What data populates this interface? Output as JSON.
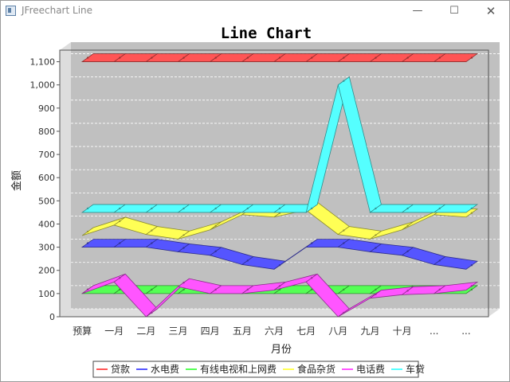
{
  "window": {
    "title": "JFreechart Line",
    "minimize_glyph": "—",
    "maximize_glyph": "☐",
    "close_glyph": "✕"
  },
  "colors": {
    "plot_bg": "#c0c0c0",
    "plot_wall": "#dddddd",
    "grid": "#ffffff"
  },
  "chart_data": {
    "type": "line",
    "render": "3d",
    "title": "Line Chart",
    "xlabel": "月份",
    "ylabel": "金额",
    "categories": [
      "预算",
      "一月",
      "二月",
      "三月",
      "四月",
      "五月",
      "六月",
      "七月",
      "八月",
      "九月",
      "十月",
      "...",
      "..."
    ],
    "ylim": [
      0,
      1150
    ],
    "yticks": [
      0,
      100,
      200,
      300,
      400,
      500,
      600,
      700,
      800,
      900,
      1000,
      1100
    ],
    "ytick_labels": [
      "0",
      "100",
      "200",
      "300",
      "400",
      "500",
      "600",
      "700",
      "800",
      "900",
      "1,000",
      "1,100"
    ],
    "grid": true,
    "legend_position": "bottom",
    "series": [
      {
        "name": "贷款",
        "color": "#ff5555",
        "values": [
          1100,
          1100,
          1100,
          1100,
          1100,
          1100,
          1100,
          1100,
          1100,
          1100,
          1100,
          1100,
          1100
        ]
      },
      {
        "name": "水电费",
        "color": "#5555ff",
        "values": [
          300,
          300,
          300,
          280,
          265,
          225,
          205,
          300,
          300,
          280,
          265,
          225,
          205
        ]
      },
      {
        "name": "有线电视和上网费",
        "color": "#55ff55",
        "values": [
          100,
          100,
          100,
          100,
          100,
          100,
          100,
          100,
          100,
          100,
          100,
          100,
          100
        ]
      },
      {
        "name": "食品杂货",
        "color": "#ffff55",
        "values": [
          350,
          395,
          355,
          335,
          375,
          440,
          430,
          460,
          355,
          335,
          375,
          440,
          430
        ]
      },
      {
        "name": "电话费",
        "color": "#ff55ff",
        "values": [
          100,
          150,
          0,
          130,
          100,
          100,
          115,
          150,
          0,
          80,
          95,
          100,
          115
        ]
      },
      {
        "name": "车贷",
        "color": "#55ffff",
        "values": [
          450,
          450,
          450,
          450,
          450,
          450,
          450,
          450,
          1000,
          450,
          450,
          450,
          450
        ]
      }
    ]
  }
}
